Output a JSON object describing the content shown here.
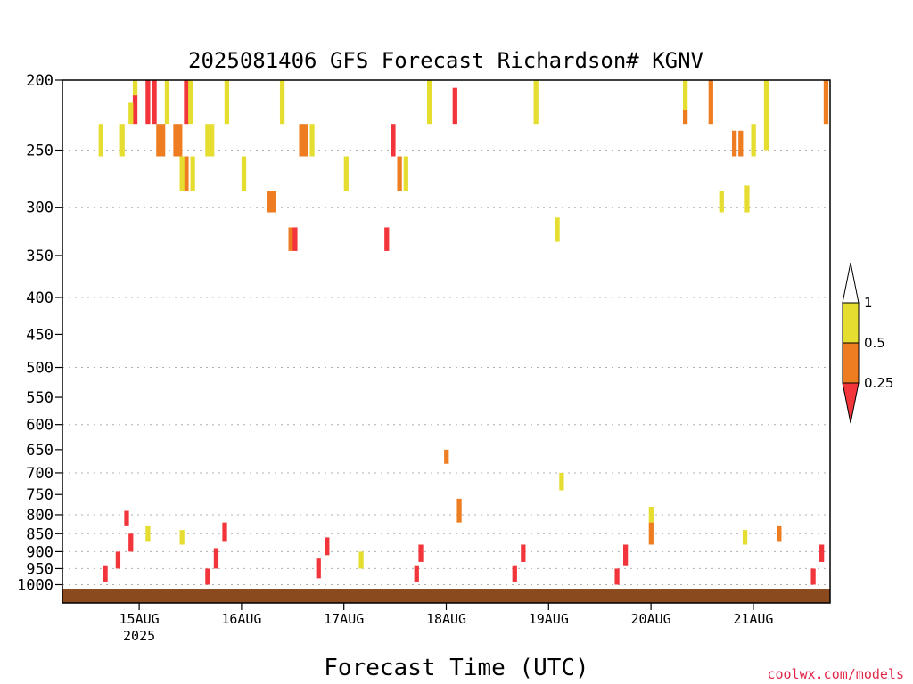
{
  "chart_data": {
    "type": "heatmap",
    "title": "2025081406 GFS Forecast Richardson# KGNV",
    "xlabel": "Forecast Time (UTC)",
    "ylabel": "",
    "y_scale": "log",
    "y_reversed": true,
    "ylim": [
      200,
      1060
    ],
    "xlim": [
      0,
      180
    ],
    "grid": "dotted horizontal lines at labeled pressure levels",
    "y_ticks": [
      {
        "value": 200,
        "label": "200",
        "grid": false
      },
      {
        "value": 250,
        "label": "250",
        "grid": true
      },
      {
        "value": 300,
        "label": "300",
        "grid": true
      },
      {
        "value": 350,
        "label": "350",
        "grid": false
      },
      {
        "value": 400,
        "label": "400",
        "grid": true
      },
      {
        "value": 450,
        "label": "450",
        "grid": false
      },
      {
        "value": 500,
        "label": "500",
        "grid": true
      },
      {
        "value": 550,
        "label": "550",
        "grid": false
      },
      {
        "value": 600,
        "label": "600",
        "grid": true
      },
      {
        "value": 650,
        "label": "650",
        "grid": false
      },
      {
        "value": 700,
        "label": "700",
        "grid": true
      },
      {
        "value": 750,
        "label": "750",
        "grid": false
      },
      {
        "value": 800,
        "label": "800",
        "grid": true
      },
      {
        "value": 850,
        "label": "850",
        "grid": true
      },
      {
        "value": 900,
        "label": "900",
        "grid": true
      },
      {
        "value": 950,
        "label": "950",
        "grid": true
      },
      {
        "value": 1000,
        "label": "1000",
        "grid": true
      }
    ],
    "x_ticks": [
      {
        "hour": 18,
        "label": "15AUG",
        "sublabel": "2025"
      },
      {
        "hour": 42,
        "label": "16AUG"
      },
      {
        "hour": 66,
        "label": "17AUG"
      },
      {
        "hour": 90,
        "label": "18AUG"
      },
      {
        "hour": 114,
        "label": "19AUG"
      },
      {
        "hour": 138,
        "label": "20AUG"
      },
      {
        "hour": 162,
        "label": "21AUG"
      }
    ],
    "legend": {
      "placement": "right",
      "levels": [
        "1",
        "0.5",
        "0.25"
      ],
      "bins": [
        {
          "range": "> 1",
          "color": "#ffffff"
        },
        {
          "range": "0.5 - 1",
          "color": "#e5dd30"
        },
        {
          "range": "0.25 - 0.5",
          "color": "#ee7d22"
        },
        {
          "range": "< 0.25",
          "color": "#f2353a"
        }
      ]
    },
    "colors": {
      "red": "#f2353a",
      "orange": "#ee7d22",
      "yellow": "#e5dd30",
      "ground": "#8b4a1e"
    },
    "cells": [
      {
        "h": 17,
        "p1": 200,
        "p2": 210,
        "c": "yellow"
      },
      {
        "h": 17,
        "p1": 210,
        "p2": 230,
        "c": "red"
      },
      {
        "h": 16,
        "p1": 215,
        "p2": 230,
        "c": "yellow"
      },
      {
        "h": 20,
        "p1": 200,
        "p2": 230,
        "c": "red"
      },
      {
        "h": 21.5,
        "p1": 200,
        "p2": 230,
        "c": "red"
      },
      {
        "h": 22.5,
        "p1": 230,
        "p2": 255,
        "c": "orange"
      },
      {
        "h": 23.5,
        "p1": 230,
        "p2": 255,
        "c": "orange"
      },
      {
        "h": 24.5,
        "p1": 200,
        "p2": 230,
        "c": "yellow"
      },
      {
        "h": 26.5,
        "p1": 230,
        "p2": 255,
        "c": "orange"
      },
      {
        "h": 27.5,
        "p1": 230,
        "p2": 255,
        "c": "orange"
      },
      {
        "h": 29,
        "p1": 200,
        "p2": 230,
        "c": "red"
      },
      {
        "h": 30,
        "p1": 200,
        "p2": 230,
        "c": "yellow"
      },
      {
        "h": 9,
        "p1": 230,
        "p2": 255,
        "c": "yellow"
      },
      {
        "h": 14,
        "p1": 230,
        "p2": 255,
        "c": "yellow"
      },
      {
        "h": 29,
        "p1": 255,
        "p2": 285,
        "c": "orange"
      },
      {
        "h": 28,
        "p1": 255,
        "p2": 285,
        "c": "yellow"
      },
      {
        "h": 30.5,
        "p1": 255,
        "p2": 285,
        "c": "yellow"
      },
      {
        "h": 38.5,
        "p1": 200,
        "p2": 230,
        "c": "yellow"
      },
      {
        "h": 34,
        "p1": 230,
        "p2": 255,
        "c": "yellow"
      },
      {
        "h": 35,
        "p1": 230,
        "p2": 255,
        "c": "yellow"
      },
      {
        "h": 42.5,
        "p1": 255,
        "p2": 285,
        "c": "yellow"
      },
      {
        "h": 48.5,
        "p1": 285,
        "p2": 305,
        "c": "orange"
      },
      {
        "h": 49.5,
        "p1": 285,
        "p2": 305,
        "c": "orange"
      },
      {
        "h": 53.5,
        "p1": 320,
        "p2": 345,
        "c": "orange"
      },
      {
        "h": 54.5,
        "p1": 320,
        "p2": 345,
        "c": "red"
      },
      {
        "h": 51.5,
        "p1": 200,
        "p2": 230,
        "c": "yellow"
      },
      {
        "h": 56,
        "p1": 230,
        "p2": 255,
        "c": "orange"
      },
      {
        "h": 57,
        "p1": 230,
        "p2": 255,
        "c": "orange"
      },
      {
        "h": 58.5,
        "p1": 230,
        "p2": 255,
        "c": "yellow"
      },
      {
        "h": 66.5,
        "p1": 255,
        "p2": 285,
        "c": "yellow"
      },
      {
        "h": 76,
        "p1": 320,
        "p2": 345,
        "c": "red"
      },
      {
        "h": 77.5,
        "p1": 230,
        "p2": 255,
        "c": "red"
      },
      {
        "h": 79,
        "p1": 255,
        "p2": 285,
        "c": "orange"
      },
      {
        "h": 80.5,
        "p1": 255,
        "p2": 285,
        "c": "yellow"
      },
      {
        "h": 86,
        "p1": 200,
        "p2": 230,
        "c": "yellow"
      },
      {
        "h": 92,
        "p1": 205,
        "p2": 230,
        "c": "red"
      },
      {
        "h": 111,
        "p1": 200,
        "p2": 230,
        "c": "yellow"
      },
      {
        "h": 116,
        "p1": 310,
        "p2": 335,
        "c": "yellow"
      },
      {
        "h": 146,
        "p1": 200,
        "p2": 220,
        "c": "yellow"
      },
      {
        "h": 146,
        "p1": 220,
        "p2": 230,
        "c": "orange"
      },
      {
        "h": 152,
        "p1": 200,
        "p2": 230,
        "c": "orange"
      },
      {
        "h": 157.5,
        "p1": 235,
        "p2": 255,
        "c": "orange"
      },
      {
        "h": 159,
        "p1": 235,
        "p2": 255,
        "c": "orange"
      },
      {
        "h": 162,
        "p1": 230,
        "p2": 255,
        "c": "yellow"
      },
      {
        "h": 165,
        "p1": 200,
        "p2": 250,
        "c": "yellow"
      },
      {
        "h": 160.5,
        "p1": 280,
        "p2": 305,
        "c": "yellow"
      },
      {
        "h": 154.5,
        "p1": 285,
        "p2": 305,
        "c": "yellow"
      },
      {
        "h": 179,
        "p1": 200,
        "p2": 230,
        "c": "orange"
      },
      {
        "h": 15,
        "p1": 790,
        "p2": 830,
        "c": "red"
      },
      {
        "h": 16,
        "p1": 850,
        "p2": 900,
        "c": "red"
      },
      {
        "h": 13,
        "p1": 900,
        "p2": 950,
        "c": "red"
      },
      {
        "h": 10,
        "p1": 940,
        "p2": 990,
        "c": "red"
      },
      {
        "h": 38,
        "p1": 820,
        "p2": 870,
        "c": "red"
      },
      {
        "h": 36,
        "p1": 890,
        "p2": 950,
        "c": "red"
      },
      {
        "h": 34,
        "p1": 950,
        "p2": 1000,
        "c": "red"
      },
      {
        "h": 62,
        "p1": 860,
        "p2": 910,
        "c": "red"
      },
      {
        "h": 60,
        "p1": 920,
        "p2": 980,
        "c": "red"
      },
      {
        "h": 84,
        "p1": 880,
        "p2": 930,
        "c": "red"
      },
      {
        "h": 83,
        "p1": 940,
        "p2": 990,
        "c": "red"
      },
      {
        "h": 108,
        "p1": 880,
        "p2": 930,
        "c": "red"
      },
      {
        "h": 106,
        "p1": 940,
        "p2": 990,
        "c": "red"
      },
      {
        "h": 132,
        "p1": 880,
        "p2": 940,
        "c": "red"
      },
      {
        "h": 130,
        "p1": 950,
        "p2": 1000,
        "c": "red"
      },
      {
        "h": 178,
        "p1": 880,
        "p2": 930,
        "c": "red"
      },
      {
        "h": 176,
        "p1": 950,
        "p2": 1000,
        "c": "red"
      },
      {
        "h": 90,
        "p1": 650,
        "p2": 680,
        "c": "orange"
      },
      {
        "h": 93,
        "p1": 760,
        "p2": 820,
        "c": "orange"
      },
      {
        "h": 117,
        "p1": 700,
        "p2": 740,
        "c": "yellow"
      },
      {
        "h": 138,
        "p1": 780,
        "p2": 820,
        "c": "yellow"
      },
      {
        "h": 138,
        "p1": 820,
        "p2": 880,
        "c": "orange"
      },
      {
        "h": 20,
        "p1": 830,
        "p2": 870,
        "c": "yellow"
      },
      {
        "h": 28,
        "p1": 840,
        "p2": 880,
        "c": "yellow"
      },
      {
        "h": 70,
        "p1": 900,
        "p2": 950,
        "c": "yellow"
      },
      {
        "h": 160,
        "p1": 840,
        "p2": 880,
        "c": "yellow"
      },
      {
        "h": 168,
        "p1": 830,
        "p2": 870,
        "c": "orange"
      }
    ]
  },
  "credit": "coolwx.com/models"
}
